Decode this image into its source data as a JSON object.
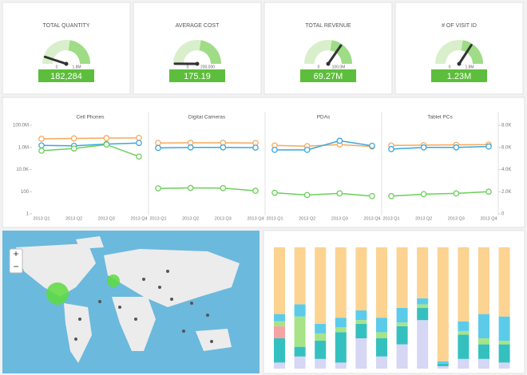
{
  "chart_data": [
    {
      "type": "gauge",
      "title": "TOTAL QUANTITY",
      "value": 182284,
      "value_label": "182,284",
      "min": 0,
      "max": {
        "value": 1800000,
        "label": "1.8M"
      }
    },
    {
      "type": "gauge",
      "title": "AVERAGE COST",
      "value": 175.19,
      "value_label": "175.19",
      "min": 0,
      "max": {
        "value": 200000,
        "label": "200,000"
      }
    },
    {
      "type": "gauge",
      "title": "TOTAL REVENUE",
      "value": 69270000,
      "value_label": "69.27M",
      "min": 0,
      "max": {
        "value": 100000000,
        "label": "100.0M"
      }
    },
    {
      "type": "gauge",
      "title": "# OF VISIT ID",
      "value": 1230000,
      "value_label": "1.23M",
      "min": 0,
      "max": {
        "value": 1800000,
        "label": "1.8M"
      }
    },
    {
      "type": "line",
      "log_scale": true,
      "categories": [
        "2013 Q1",
        "2013 Q2",
        "2013 Q3",
        "2013 Q4"
      ],
      "ylim": [
        1,
        100000000
      ],
      "yticks": [
        1,
        100,
        {
          "value": 10000,
          "label": "10.0K"
        },
        {
          "value": 1000000,
          "label": "1.0M"
        },
        {
          "value": 100000000,
          "label": "100.0M"
        }
      ],
      "y2lim": [
        0,
        8000
      ],
      "y2ticks": [
        0,
        {
          "value": 2000,
          "label": "2.0K"
        },
        {
          "value": 4000,
          "label": "4.0K"
        },
        {
          "value": 6000,
          "label": "6.0K"
        },
        {
          "value": 8000,
          "label": "8.0K"
        }
      ],
      "panels": [
        {
          "title": "Cell Phones",
          "series": [
            {
              "color": "#f9a85a",
              "values": [
                6000000,
                6500000,
                7000000,
                7200000
              ]
            },
            {
              "color": "#3aa8dc",
              "values": [
                1500000,
                1400000,
                2000000,
                2500000
              ]
            },
            {
              "color": "#6ccf5a",
              "values": [
                500000,
                800000,
                1800000,
                150000
              ]
            }
          ]
        },
        {
          "title": "Digital Cameras",
          "series": [
            {
              "color": "#f9a85a",
              "values": [
                2500000,
                2600000,
                2600000,
                2500000
              ]
            },
            {
              "color": "#3aa8dc",
              "values": [
                900000,
                1000000,
                1000000,
                950000
              ]
            },
            {
              "color": "#6ccf5a",
              "values": [
                200,
                220,
                210,
                120
              ]
            }
          ]
        },
        {
          "title": "PDAs",
          "series": [
            {
              "color": "#f9a85a",
              "values": [
                1500000,
                1300000,
                1800000,
                1200000
              ]
            },
            {
              "color": "#3aa8dc",
              "values": [
                600000,
                600000,
                4000000,
                1400000
              ]
            },
            {
              "color": "#6ccf5a",
              "values": [
                80,
                50,
                70,
                40
              ]
            }
          ]
        },
        {
          "title": "Tablet PCs",
          "series": [
            {
              "color": "#f9a85a",
              "values": [
                1500000,
                1600000,
                1700000,
                1800000
              ]
            },
            {
              "color": "#3aa8dc",
              "values": [
                700000,
                1000000,
                1000000,
                1200000
              ]
            },
            {
              "color": "#6ccf5a",
              "values": [
                40,
                60,
                70,
                100
              ]
            }
          ]
        }
      ]
    },
    {
      "type": "stacked_bar",
      "ylim": [
        0,
        100
      ],
      "series": [
        {
          "color": "#d6d6f5",
          "values": [
            5,
            10,
            8,
            5,
            25,
            10,
            20,
            40,
            2,
            8,
            8,
            5
          ]
        },
        {
          "color": "#35c0c0",
          "values": [
            20,
            8,
            15,
            25,
            12,
            15,
            15,
            10,
            2,
            20,
            12,
            15
          ]
        },
        {
          "color": "#f5a3a3",
          "values": [
            10,
            0,
            0,
            0,
            0,
            0,
            0,
            0,
            0,
            0,
            0,
            0
          ]
        },
        {
          "color": "#a6e487",
          "values": [
            4,
            25,
            6,
            4,
            3,
            5,
            3,
            3,
            0,
            3,
            5,
            3
          ]
        },
        {
          "color": "#5ccbea",
          "values": [
            6,
            10,
            8,
            8,
            8,
            12,
            12,
            5,
            2,
            8,
            20,
            20
          ]
        },
        {
          "color": "#fcd391",
          "values": [
            55,
            47,
            63,
            58,
            52,
            58,
            50,
            42,
            94,
            61,
            55,
            57
          ]
        }
      ]
    }
  ],
  "map": {
    "zoom_in": "+",
    "zoom_out": "−"
  }
}
